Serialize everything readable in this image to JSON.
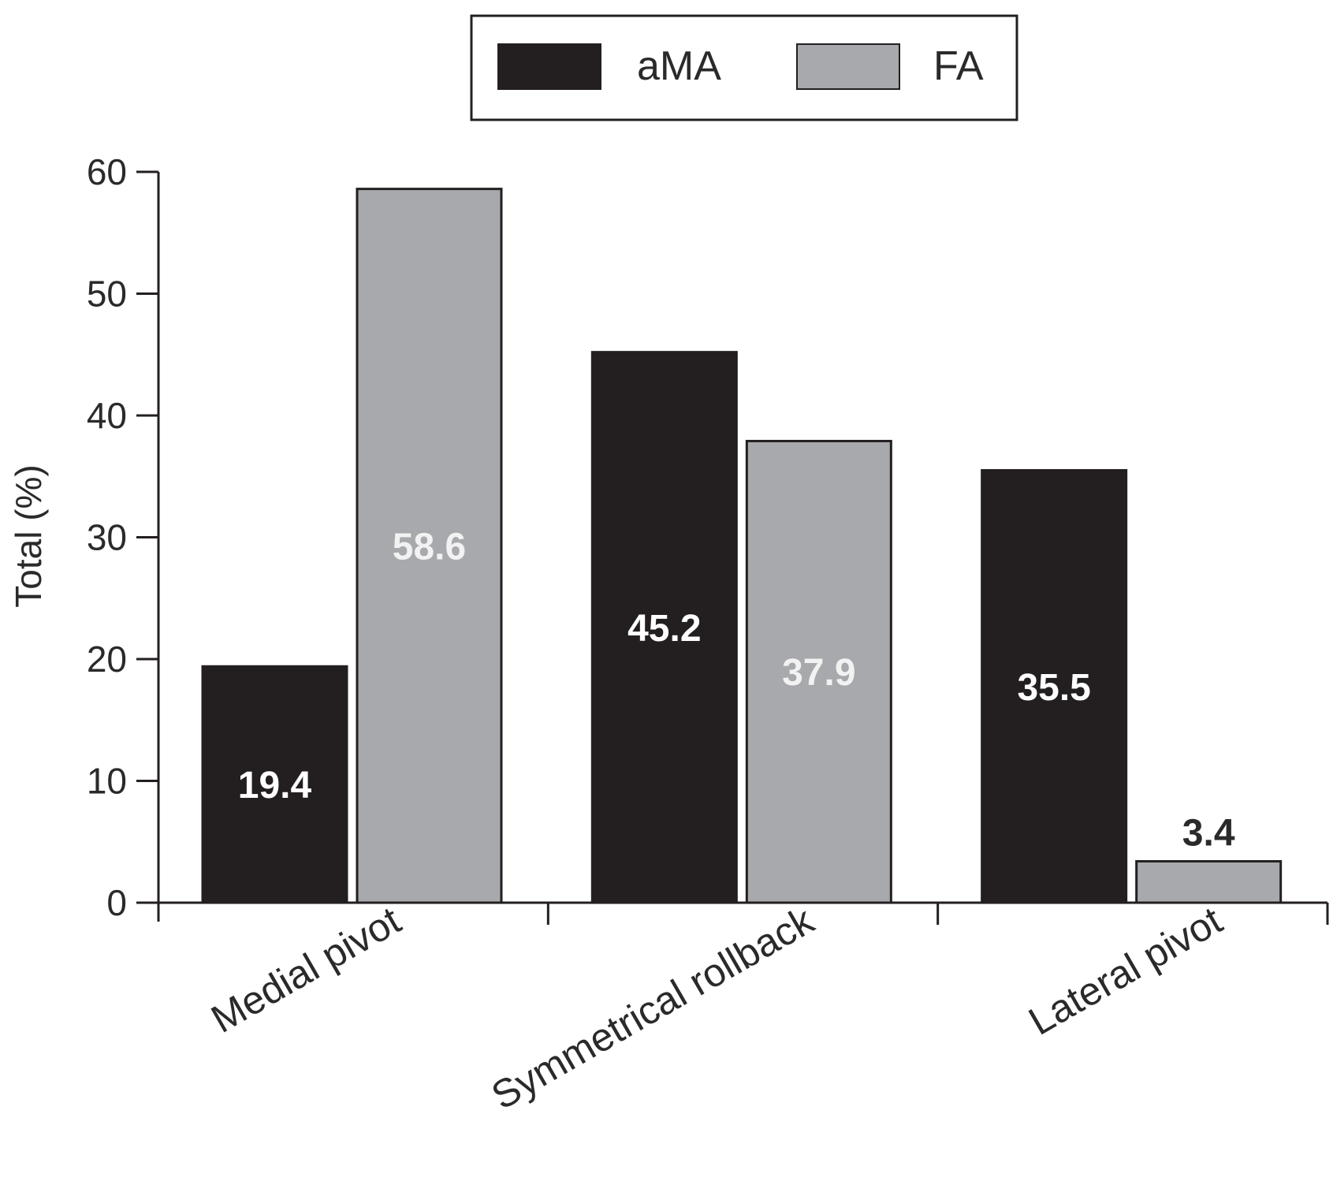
{
  "chart_data": {
    "type": "bar",
    "title": "",
    "xlabel": "",
    "ylabel": "Total (%)",
    "ylim": [
      0,
      60
    ],
    "yticks": [
      0,
      10,
      20,
      30,
      40,
      50,
      60
    ],
    "grid": false,
    "legend_position": "top-center",
    "categories": [
      "Medial pivot",
      "Symmetrical rollback",
      "Lateral pivot"
    ],
    "series": [
      {
        "name": "aMA",
        "color": "#231f20",
        "label_color": "#ffffff",
        "values": [
          19.4,
          45.2,
          35.5
        ]
      },
      {
        "name": "FA",
        "color": "#a7a9ac",
        "label_color": "#f2f2f2",
        "values": [
          58.6,
          37.9,
          3.4
        ]
      }
    ],
    "value_labels": [
      [
        "19.4",
        "45.2",
        "35.5"
      ],
      [
        "58.6",
        "37.9",
        "3.4"
      ]
    ]
  }
}
